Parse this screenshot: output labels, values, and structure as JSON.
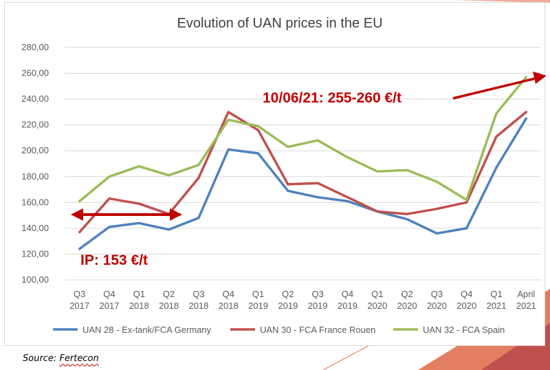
{
  "source": {
    "prefix": "Source: ",
    "name": "Fertecon"
  },
  "annotations": {
    "current": "10/06/21: 255-260 €/t",
    "ip": "IP: 153 €/t"
  },
  "colors": {
    "annotation": "#c00000",
    "decor_orange": "#e07050",
    "decor_red": "#c0504d"
  },
  "chart_data": {
    "type": "line",
    "title": "Evolution of UAN prices in the EU",
    "xlabel": "",
    "ylabel": "",
    "ylim": [
      100,
      280
    ],
    "yticks": [
      "100,00",
      "120,00",
      "140,00",
      "160,00",
      "180,00",
      "200,00",
      "220,00",
      "240,00",
      "260,00",
      "280,00"
    ],
    "grid": true,
    "legend_position": "bottom",
    "categories": [
      [
        "Q3",
        "2017"
      ],
      [
        "Q4",
        "2017"
      ],
      [
        "Q1",
        "2018"
      ],
      [
        "Q2",
        "2018"
      ],
      [
        "Q3",
        "2018"
      ],
      [
        "Q4",
        "2018"
      ],
      [
        "Q1",
        "2019"
      ],
      [
        "Q2",
        "2019"
      ],
      [
        "Q3",
        "2019"
      ],
      [
        "Q4",
        "2019"
      ],
      [
        "Q1",
        "2020"
      ],
      [
        "Q2",
        "2020"
      ],
      [
        "Q3",
        "2020"
      ],
      [
        "Q4",
        "2020"
      ],
      [
        "Q1",
        "2021"
      ],
      [
        "April",
        "2021"
      ]
    ],
    "series": [
      {
        "name": "UAN 28 - Ex-tank/FCA Germany",
        "color": "#4f81bd",
        "values": [
          124,
          141,
          144,
          139,
          148,
          201,
          198,
          169,
          164,
          161,
          153,
          147,
          136,
          140,
          187,
          225
        ]
      },
      {
        "name": "UAN 30 - FCA France Rouen",
        "color": "#c0504d",
        "values": [
          137,
          163,
          159,
          151,
          179,
          230,
          216,
          174,
          175,
          164,
          153,
          151,
          155,
          160,
          211,
          230
        ]
      },
      {
        "name": "UAN 32 - FCA Spain",
        "color": "#9bbb59",
        "values": [
          161,
          180,
          188,
          181,
          189,
          224,
          219,
          203,
          208,
          195,
          184,
          185,
          176,
          162,
          229,
          257
        ]
      }
    ]
  }
}
